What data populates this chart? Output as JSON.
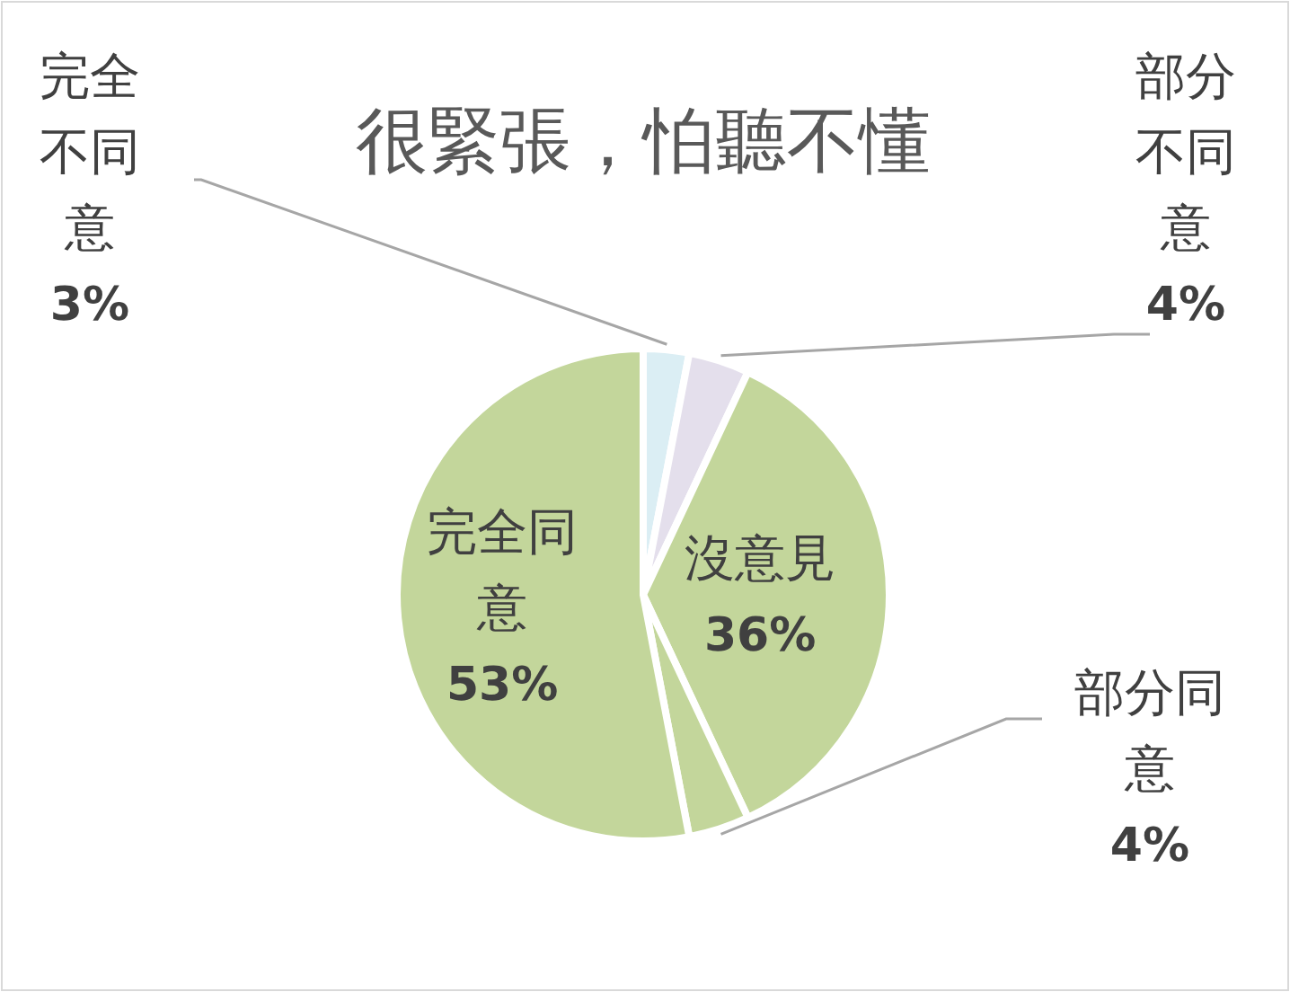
{
  "chart_data": {
    "type": "pie",
    "title": "很緊張，怕聽不懂",
    "categories": [
      "完全不同意",
      "部分不同意",
      "沒意見",
      "部分同意",
      "完全同意"
    ],
    "values": [
      3,
      4,
      36,
      4,
      53
    ],
    "value_labels": [
      "3%",
      "4%",
      "36%",
      "4%",
      "53%"
    ],
    "colors": [
      "#dbeef4",
      "#e4dfec",
      "#c3d69b",
      "#c3d69b",
      "#c3d69b"
    ]
  }
}
